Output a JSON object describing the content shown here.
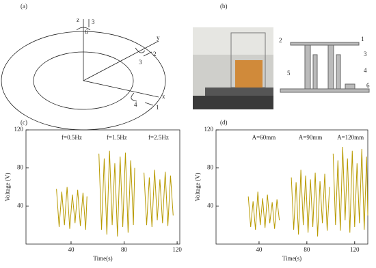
{
  "figure": {
    "a": {
      "label": "(a)",
      "axes": [
        "z",
        "y",
        "x"
      ],
      "markers": [
        "3",
        "6",
        "2",
        "3",
        "4",
        "1"
      ]
    },
    "b": {
      "label": "(b)",
      "markers": [
        "1",
        "2",
        "3",
        "4",
        "5",
        "6"
      ]
    }
  },
  "chart_data": [
    {
      "type": "line",
      "panel_label": "(c)",
      "xlabel": "Time(s)",
      "ylabel": "Voltage (V)",
      "xlim": [
        6,
        122
      ],
      "xticks": [
        40,
        80,
        120
      ],
      "ylim": [
        0,
        120
      ],
      "yticks": [
        40,
        80,
        120
      ],
      "series": [
        {
          "name": "f=0.5Hz",
          "color": "#b89a00",
          "x": [
            29,
            31,
            33,
            35,
            37,
            39,
            41,
            43,
            45,
            47,
            49,
            51,
            52
          ],
          "values": [
            58,
            18,
            55,
            20,
            60,
            16,
            52,
            22,
            57,
            19,
            54,
            15,
            50
          ]
        },
        {
          "name": "f=1.5Hz",
          "color": "#b89a00",
          "x": [
            61,
            63,
            65,
            67,
            69,
            71,
            73,
            75,
            77,
            79,
            81,
            83,
            85,
            87,
            88
          ],
          "values": [
            95,
            15,
            90,
            10,
            98,
            20,
            85,
            8,
            92,
            18,
            96,
            12,
            88,
            20,
            80
          ]
        },
        {
          "name": "f=2.5Hz",
          "color": "#b89a00",
          "x": [
            95,
            97,
            99,
            101,
            103,
            105,
            107,
            109,
            111,
            113,
            115,
            117
          ],
          "values": [
            75,
            20,
            70,
            18,
            78,
            25,
            68,
            22,
            76,
            19,
            72,
            30
          ]
        }
      ]
    },
    {
      "type": "line",
      "panel_label": "(d)",
      "xlabel": "Time(s)",
      "ylabel": "Voltage (V)",
      "xlim": [
        4,
        131
      ],
      "xticks": [
        40,
        80,
        120
      ],
      "ylim": [
        0,
        120
      ],
      "yticks": [
        40,
        80,
        120
      ],
      "series": [
        {
          "name": "A=60mm",
          "color": "#b89a00",
          "x": [
            31,
            33,
            35,
            37,
            39,
            41,
            43,
            45,
            47,
            49,
            51,
            53,
            55,
            57
          ],
          "values": [
            50,
            18,
            45,
            15,
            55,
            20,
            48,
            17,
            52,
            22,
            44,
            16,
            47,
            25
          ]
        },
        {
          "name": "A=90mm",
          "color": "#b89a00",
          "x": [
            67,
            69,
            71,
            73,
            75,
            77,
            79,
            81,
            83,
            85,
            87,
            89,
            91,
            93,
            95,
            97,
            99
          ],
          "values": [
            70,
            15,
            65,
            10,
            78,
            20,
            72,
            12,
            68,
            18,
            75,
            8,
            66,
            22,
            74,
            14,
            60
          ]
        },
        {
          "name": "A=120mm",
          "color": "#b89a00",
          "x": [
            102,
            104,
            106,
            108,
            110,
            112,
            114,
            116,
            118,
            120,
            122,
            124,
            126,
            128,
            130,
            131
          ],
          "values": [
            95,
            20,
            88,
            14,
            102,
            25,
            90,
            12,
            98,
            18,
            85,
            22,
            100,
            15,
            92,
            30
          ]
        }
      ]
    }
  ]
}
